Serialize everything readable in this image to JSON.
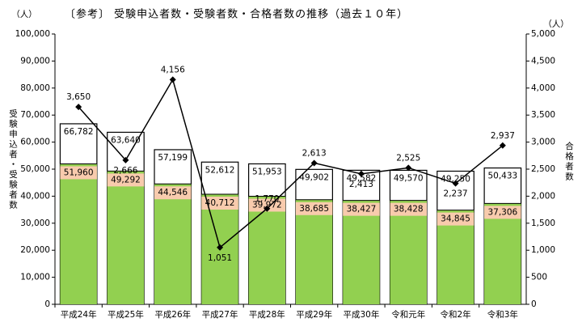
{
  "chart_data": {
    "type": "bar-line",
    "title": "〔参考〕 受験申込者数・受験者数・合格者数の推移（過去１０年）",
    "y_unit": "（人）",
    "y2_unit": "（人）",
    "ylabel": "受験申込者・受験者数",
    "y2label": "合格者数",
    "categories": [
      "平成24年",
      "平成25年",
      "平成26年",
      "平成27年",
      "平成28年",
      "平成29年",
      "平成30年",
      "令和元年",
      "令和2年",
      "令和3年"
    ],
    "series": [
      {
        "type": "bar",
        "color": "#ffffff",
        "values": [
          66782,
          63640,
          57199,
          52612,
          51953,
          49902,
          49582,
          49570,
          49250,
          50433
        ],
        "value_labels": [
          "66,782",
          "63,640",
          "57,199",
          "52,612",
          "51,953",
          "49,902",
          "49,582",
          "49,570",
          "49,250",
          "50,433"
        ]
      },
      {
        "type": "bar",
        "color": "#92d050",
        "label_color": "#f8cbad",
        "values": [
          51960,
          49292,
          44546,
          40712,
          39972,
          38685,
          38427,
          38428,
          34845,
          37306
        ],
        "value_labels": [
          "51,960",
          "49,292",
          "44,546",
          "40,712",
          "39,972",
          "38,685",
          "38,427",
          "38,428",
          "34,845",
          "37,306"
        ]
      },
      {
        "type": "line",
        "axis": "y2",
        "color": "#000000",
        "values": [
          3650,
          2666,
          4156,
          1051,
          1770,
          2613,
          2413,
          2525,
          2237,
          2937
        ],
        "value_labels": [
          "3,650",
          "2,666",
          "4,156",
          "1,051",
          "1,770",
          "2,613",
          "2,413",
          "2,525",
          "2,237",
          "2,937"
        ]
      }
    ],
    "ylim": [
      0,
      100000
    ],
    "yticks": [
      0,
      {
        "value": 10000,
        "label": "10,000"
      },
      {
        "value": 20000,
        "label": "20,000"
      },
      {
        "value": 30000,
        "label": "30,000"
      },
      {
        "value": 40000,
        "label": "40,000"
      },
      {
        "value": 50000,
        "label": "50,000"
      },
      {
        "value": 60000,
        "label": "60,000"
      },
      {
        "value": 70000,
        "label": "70,000"
      },
      {
        "value": 80000,
        "label": "80,000"
      },
      {
        "value": 90000,
        "label": "90,000"
      },
      {
        "value": 100000,
        "label": "100,000"
      }
    ],
    "y2lim": [
      0,
      5000
    ],
    "y2ticks": [
      0,
      500,
      {
        "value": 1000,
        "label": "1,000"
      },
      {
        "value": 1500,
        "label": "1,500"
      },
      {
        "value": 2000,
        "label": "2,000"
      },
      {
        "value": 2500,
        "label": "2,500"
      },
      {
        "value": 3000,
        "label": "3,000"
      },
      {
        "value": 3500,
        "label": "3,500"
      },
      {
        "value": 4000,
        "label": "4,000"
      },
      {
        "value": 4500,
        "label": "4,500"
      },
      {
        "value": 5000,
        "label": "5,000"
      }
    ],
    "grid": false
  }
}
